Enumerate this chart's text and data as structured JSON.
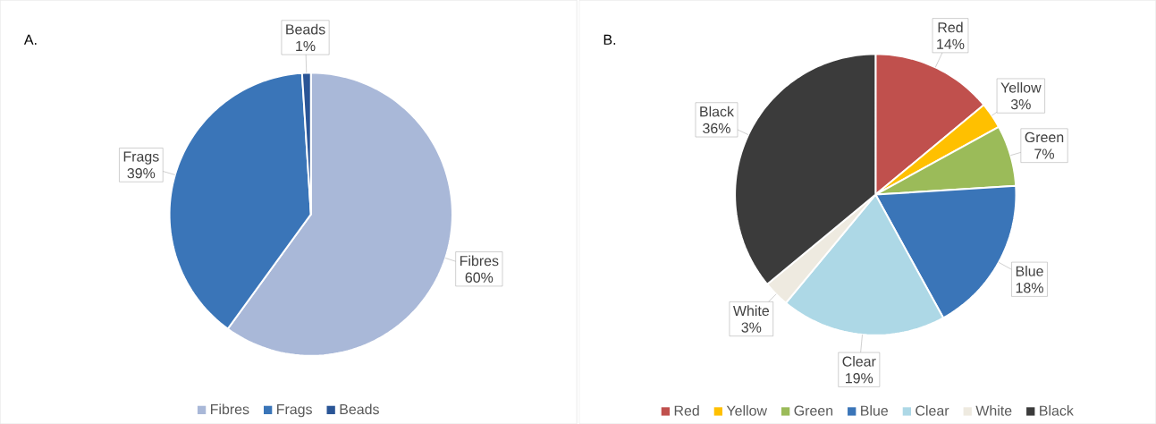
{
  "chart_data": [
    {
      "type": "pie",
      "title": "A.",
      "categories": [
        "Fibres",
        "Frags",
        "Beads"
      ],
      "values": [
        60,
        39,
        1
      ],
      "value_labels": [
        "60%",
        "39%",
        "1%"
      ],
      "colors": [
        "#a9b8d8",
        "#3a75b8",
        "#2a5596"
      ],
      "legend": "bottom"
    },
    {
      "type": "pie",
      "title": "B.",
      "categories": [
        "Red",
        "Yellow",
        "Green",
        "Blue",
        "Clear",
        "White",
        "Black"
      ],
      "values": [
        14,
        3,
        7,
        18,
        19,
        3,
        36
      ],
      "value_labels": [
        "14%",
        "3%",
        "7%",
        "18%",
        "19%",
        "3%",
        "36%"
      ],
      "colors": [
        "#c0504d",
        "#ffc000",
        "#9bbb59",
        "#3a75b8",
        "#add8e6",
        "#eeeae0",
        "#3b3b3b"
      ],
      "legend": "bottom"
    }
  ]
}
